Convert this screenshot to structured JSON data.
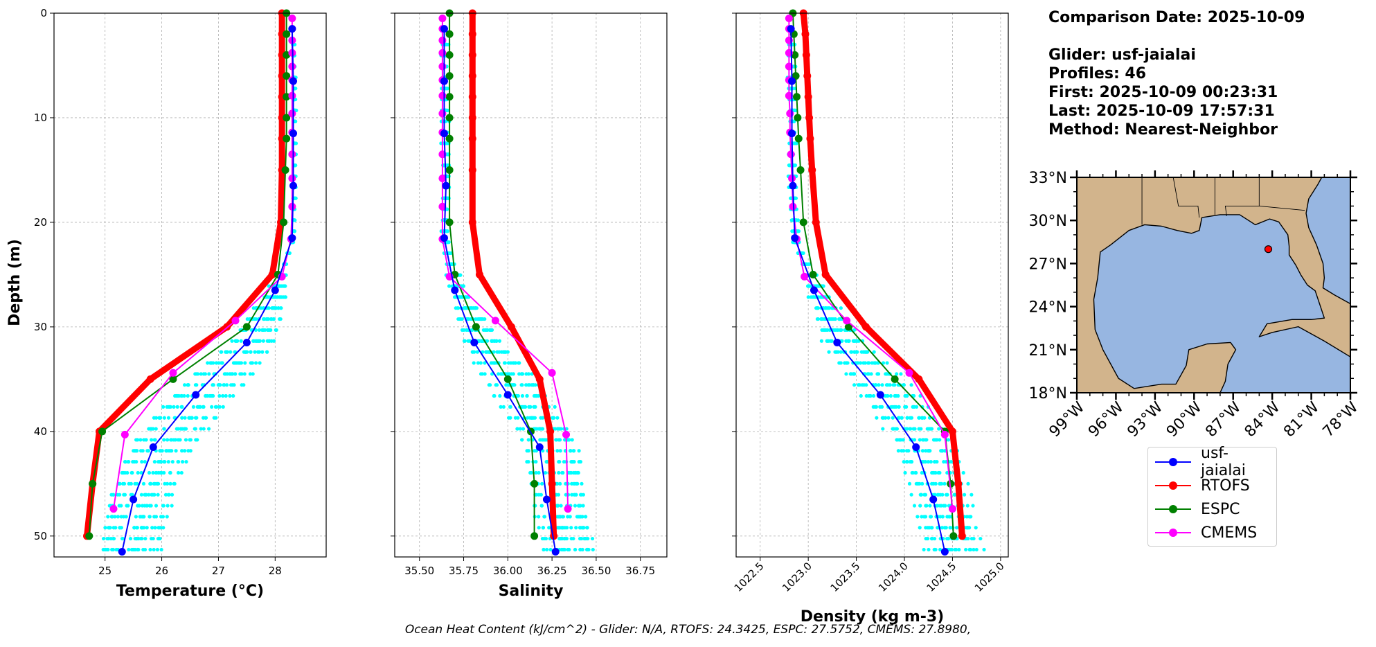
{
  "info": {
    "comparison_date": "Comparison Date: 2025-10-09",
    "glider": "Glider: usf-jaialai",
    "profiles": "Profiles: 46",
    "first": "First: 2025-10-09 00:23:31",
    "last": "Last: 2025-10-09 17:57:31",
    "method": "Method: Nearest-Neighbor"
  },
  "footer": "Ocean Heat Content (kJ/cm^2) - Glider: N/A,  RTOFS: 24.3425,  ESPC: 27.5752,  CMEMS: 27.8980,",
  "colors": {
    "glider": "#0000ff",
    "rtofs": "#ff0000",
    "espc": "#008000",
    "cmems": "#ff00ff",
    "scatter": "#00ffff",
    "land": "#d2b48c",
    "ocean": "#97b6e1"
  },
  "legend": [
    "usf-jaialai",
    "RTOFS",
    "ESPC",
    "CMEMS"
  ],
  "chart_data": [
    {
      "type": "line",
      "xlabel": "Temperature (°C)",
      "ylabel": "Depth (m)",
      "xlim": [
        24.1,
        28.9
      ],
      "ylim": [
        52,
        0
      ],
      "xticks": [
        "25",
        "26",
        "27",
        "28"
      ],
      "xtick_values": [
        25,
        26,
        27,
        28
      ],
      "yticks": [
        "0",
        "10",
        "20",
        "30",
        "40",
        "50"
      ],
      "grid": true,
      "series": [
        {
          "name": "usf-jaialai",
          "depth": [
            1.5,
            6.5,
            11.5,
            16.5,
            21.5,
            26.5,
            31.5,
            36.5,
            41.5,
            46.5,
            51.5
          ],
          "values": [
            28.3,
            28.32,
            28.32,
            28.32,
            28.3,
            28.0,
            27.5,
            26.6,
            25.85,
            25.5,
            25.3
          ]
        },
        {
          "name": "RTOFS",
          "depth": [
            0,
            2,
            4,
            6,
            8,
            10,
            12,
            15,
            20,
            25,
            30,
            35,
            40,
            45,
            50
          ],
          "values": [
            28.12,
            28.12,
            28.12,
            28.12,
            28.12,
            28.12,
            28.12,
            28.12,
            28.1,
            27.95,
            27.15,
            25.8,
            24.9,
            24.78,
            24.68
          ]
        },
        {
          "name": "ESPC",
          "depth": [
            0,
            2,
            4,
            6,
            8,
            10,
            12,
            15,
            20,
            25,
            30,
            35,
            40,
            45,
            50
          ],
          "values": [
            28.2,
            28.2,
            28.2,
            28.2,
            28.2,
            28.2,
            28.2,
            28.18,
            28.15,
            28.05,
            27.5,
            26.2,
            24.95,
            24.78,
            24.72
          ]
        },
        {
          "name": "CMEMS",
          "depth": [
            0.5,
            1.5,
            2.6,
            3.8,
            5.1,
            6.4,
            7.9,
            9.6,
            11.4,
            13.5,
            15.8,
            18.5,
            21.6,
            25.2,
            29.4,
            34.4,
            40.3,
            47.4
          ],
          "values": [
            28.3,
            28.3,
            28.3,
            28.3,
            28.3,
            28.3,
            28.3,
            28.3,
            28.3,
            28.3,
            28.3,
            28.3,
            28.28,
            28.12,
            27.3,
            26.2,
            25.35,
            25.15
          ]
        }
      ]
    },
    {
      "type": "line",
      "xlabel": "Salinity",
      "xlim": [
        35.36,
        36.9
      ],
      "ylim": [
        52,
        0
      ],
      "xticks": [
        "35.50",
        "35.75",
        "36.00",
        "36.25",
        "36.50",
        "36.75"
      ],
      "xtick_values": [
        35.5,
        35.75,
        36.0,
        36.25,
        36.5,
        36.75
      ],
      "grid": true,
      "series": [
        {
          "name": "usf-jaialai",
          "depth": [
            1.5,
            6.5,
            11.5,
            16.5,
            21.5,
            26.5,
            31.5,
            36.5,
            41.5,
            46.5,
            51.5
          ],
          "values": [
            35.64,
            35.64,
            35.64,
            35.65,
            35.64,
            35.7,
            35.81,
            36.0,
            36.18,
            36.22,
            36.27
          ]
        },
        {
          "name": "RTOFS",
          "depth": [
            0,
            2,
            4,
            6,
            8,
            10,
            12,
            15,
            20,
            25,
            30,
            35,
            40,
            45,
            50
          ],
          "values": [
            35.8,
            35.8,
            35.8,
            35.8,
            35.8,
            35.8,
            35.8,
            35.8,
            35.8,
            35.84,
            36.02,
            36.18,
            36.24,
            36.25,
            36.26
          ]
        },
        {
          "name": "ESPC",
          "depth": [
            0,
            2,
            4,
            6,
            8,
            10,
            12,
            15,
            20,
            25,
            30,
            35,
            40,
            45,
            50
          ],
          "values": [
            35.67,
            35.67,
            35.67,
            35.67,
            35.67,
            35.67,
            35.67,
            35.67,
            35.67,
            35.7,
            35.82,
            36.0,
            36.13,
            36.15,
            36.15
          ]
        },
        {
          "name": "CMEMS",
          "depth": [
            0.5,
            1.5,
            2.6,
            3.8,
            5.1,
            6.4,
            7.9,
            9.6,
            11.4,
            13.5,
            15.8,
            18.5,
            21.6,
            25.2,
            29.4,
            34.4,
            40.3,
            47.4
          ],
          "values": [
            35.63,
            35.63,
            35.63,
            35.63,
            35.63,
            35.63,
            35.63,
            35.63,
            35.63,
            35.63,
            35.63,
            35.63,
            35.63,
            35.67,
            35.93,
            36.25,
            36.33,
            36.34
          ]
        }
      ]
    },
    {
      "type": "line",
      "xlabel": "Density (kg m-3)",
      "xlim": [
        1022.25,
        1025.08
      ],
      "ylim": [
        52,
        0
      ],
      "xticks": [
        "1022.5",
        "1023.0",
        "1023.5",
        "1024.0",
        "1024.5",
        "1025.0"
      ],
      "xtick_values": [
        1022.5,
        1023.0,
        1023.5,
        1024.0,
        1024.5,
        1025.0
      ],
      "grid": true,
      "series": [
        {
          "name": "usf-jaialai",
          "depth": [
            1.5,
            6.5,
            11.5,
            16.5,
            21.5,
            26.5,
            31.5,
            36.5,
            41.5,
            46.5,
            51.5
          ],
          "values": [
            1022.82,
            1022.83,
            1022.83,
            1022.84,
            1022.86,
            1023.06,
            1023.3,
            1023.75,
            1024.12,
            1024.3,
            1024.42
          ]
        },
        {
          "name": "RTOFS",
          "depth": [
            0,
            2,
            4,
            6,
            8,
            10,
            12,
            15,
            20,
            25,
            30,
            35,
            40,
            45,
            50
          ],
          "values": [
            1022.95,
            1022.97,
            1022.98,
            1022.99,
            1023.0,
            1023.01,
            1023.02,
            1023.04,
            1023.08,
            1023.18,
            1023.6,
            1024.15,
            1024.5,
            1024.56,
            1024.6
          ]
        },
        {
          "name": "ESPC",
          "depth": [
            0,
            2,
            4,
            6,
            8,
            10,
            12,
            15,
            20,
            25,
            30,
            35,
            40,
            45,
            50
          ],
          "values": [
            1022.84,
            1022.85,
            1022.86,
            1022.87,
            1022.88,
            1022.89,
            1022.9,
            1022.92,
            1022.95,
            1023.05,
            1023.42,
            1023.9,
            1024.42,
            1024.48,
            1024.51
          ]
        },
        {
          "name": "CMEMS",
          "depth": [
            0.5,
            1.5,
            2.6,
            3.8,
            5.1,
            6.4,
            7.9,
            9.6,
            11.4,
            13.5,
            15.8,
            18.5,
            21.6,
            25.2,
            29.4,
            34.4,
            40.3,
            47.4
          ],
          "values": [
            1022.8,
            1022.8,
            1022.8,
            1022.8,
            1022.8,
            1022.8,
            1022.8,
            1022.81,
            1022.81,
            1022.82,
            1022.83,
            1022.84,
            1022.88,
            1022.96,
            1023.4,
            1024.05,
            1024.42,
            1024.5
          ]
        }
      ]
    }
  ],
  "map": {
    "lat_ticks": [
      "33°N",
      "30°N",
      "27°N",
      "24°N",
      "21°N",
      "18°N"
    ],
    "lat_values": [
      33,
      30,
      27,
      24,
      21,
      18
    ],
    "lon_ticks": [
      "99°W",
      "96°W",
      "93°W",
      "90°W",
      "87°W",
      "84°W",
      "81°W",
      "78°W"
    ],
    "lon_values": [
      -99,
      -96,
      -93,
      -90,
      -87,
      -84,
      -81,
      -78
    ],
    "glider_position": {
      "lat": 28.0,
      "lon": -84.3
    }
  }
}
